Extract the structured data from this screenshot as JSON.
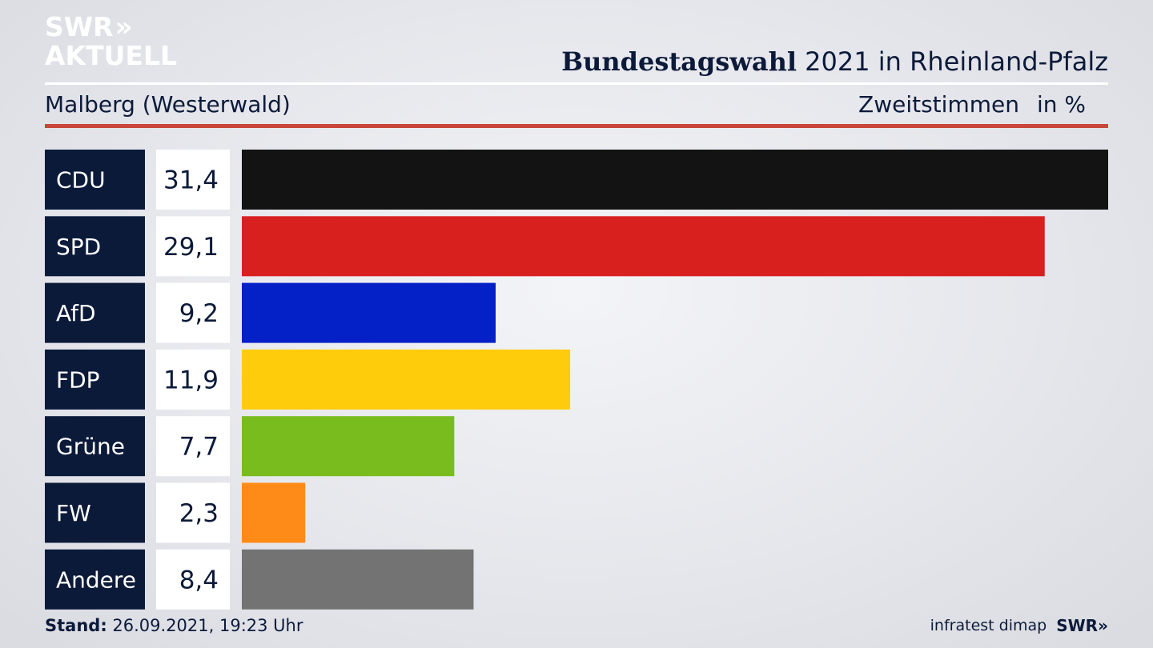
{
  "brand": {
    "line1": "SWR",
    "line2": "AKTUELL",
    "chevrons": "»"
  },
  "header": {
    "title_bold": "Bundestagswahl",
    "title_rest": " 2021 in Rheinland-Pfalz",
    "region": "Malberg (Westerwald)",
    "measure": "Zweitstimmen",
    "unit": "in %"
  },
  "footer": {
    "stand_label": "Stand:",
    "stand_value": " 26.09.2021, 19:23 Uhr",
    "source": "infratest dimap",
    "broadcaster": "SWR»"
  },
  "chart_data": {
    "type": "bar",
    "orientation": "horizontal",
    "categories": [
      "CDU",
      "SPD",
      "AfD",
      "FDP",
      "Grüne",
      "FW",
      "Andere"
    ],
    "values": [
      31.4,
      29.1,
      9.2,
      11.9,
      7.7,
      2.3,
      8.4
    ],
    "value_labels": [
      "31,4",
      "29,1",
      "9,2",
      "11,9",
      "7,7",
      "2,3",
      "8,4"
    ],
    "colors": [
      "#131313",
      "#d8201f",
      "#0420c7",
      "#fecc0b",
      "#78bc1e",
      "#fe8b18",
      "#737373"
    ],
    "xlim": [
      0,
      31.4
    ],
    "label_box_color": "#0c1a3a",
    "value_box_color": "#ffffff"
  }
}
